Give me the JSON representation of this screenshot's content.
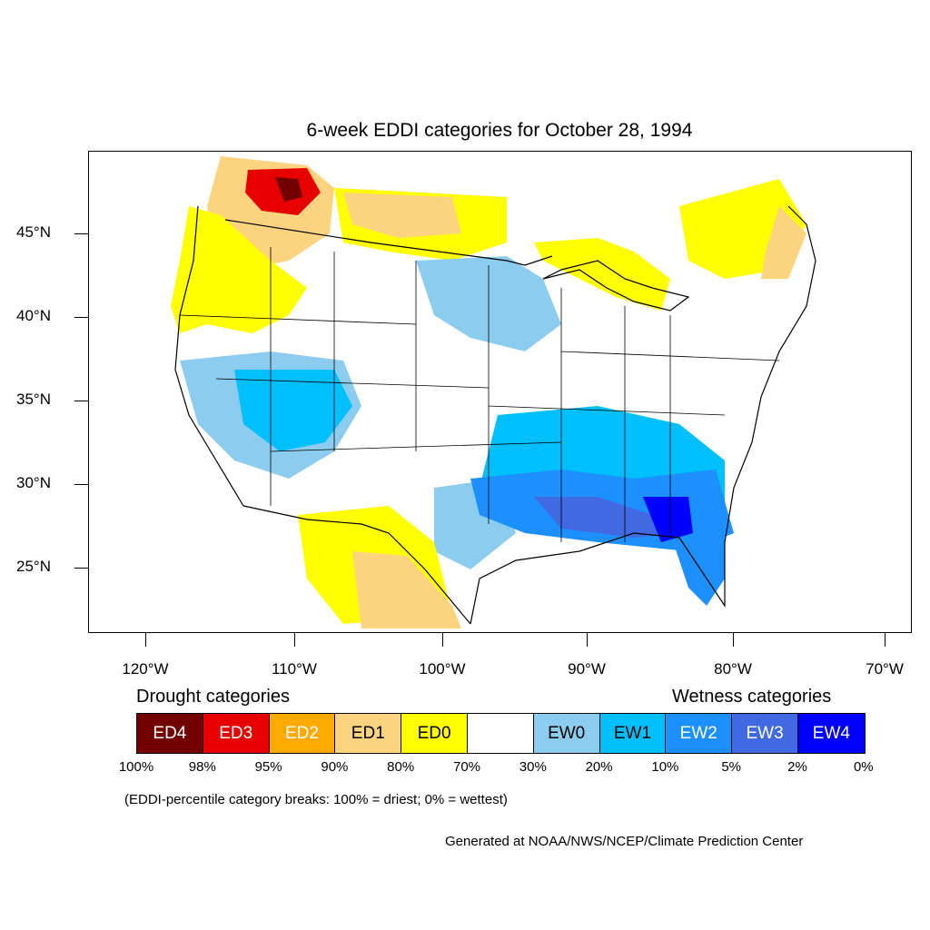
{
  "title": "6-week EDDI categories for October 28, 1994",
  "map": {
    "region": "Contiguous United States",
    "lat_labels": [
      "45°N",
      "40°N",
      "35°N",
      "30°N",
      "25°N"
    ],
    "lon_labels": [
      "120°W",
      "110°W",
      "100°W",
      "90°W",
      "80°W",
      "70°W"
    ],
    "colors": {
      "ED4": "#730000",
      "ED3": "#e60000",
      "ED2": "#ffaa00",
      "ED1": "#fcd37f",
      "ED0": "#ffff00",
      "neutral": "#ffffff",
      "EW0": "#8ccdef",
      "EW1": "#00bfff",
      "EW2": "#1d90ff",
      "EW3": "#4169e1",
      "EW4": "#0000ff"
    }
  },
  "legend": {
    "drought_heading": "Drought categories",
    "wetness_heading": "Wetness categories",
    "categories": [
      {
        "label": "ED4",
        "color": "#730000",
        "text_color": "#ffffff"
      },
      {
        "label": "ED3",
        "color": "#e60000",
        "text_color": "#ffffff"
      },
      {
        "label": "ED2",
        "color": "#ffaa00",
        "text_color": "#ffffff"
      },
      {
        "label": "ED1",
        "color": "#fcd37f",
        "text_color": "#000000"
      },
      {
        "label": "ED0",
        "color": "#ffff00",
        "text_color": "#000000"
      },
      {
        "label": "",
        "color": "#ffffff",
        "text_color": "#000000"
      },
      {
        "label": "EW0",
        "color": "#8ccdef",
        "text_color": "#000000"
      },
      {
        "label": "EW1",
        "color": "#00bfff",
        "text_color": "#000000"
      },
      {
        "label": "EW2",
        "color": "#1d90ff",
        "text_color": "#ffffff"
      },
      {
        "label": "EW3",
        "color": "#4169e1",
        "text_color": "#ffffff"
      },
      {
        "label": "EW4",
        "color": "#0000ff",
        "text_color": "#ffffff"
      }
    ],
    "breaks": [
      "100%",
      "98%",
      "95%",
      "90%",
      "80%",
      "70%",
      "30%",
      "20%",
      "10%",
      "5%",
      "2%",
      "0%"
    ],
    "note": "(EDDI-percentile category breaks: 100% = driest; 0% = wettest)"
  },
  "credit": "Generated at NOAA/NWS/NCEP/Climate Prediction Center"
}
